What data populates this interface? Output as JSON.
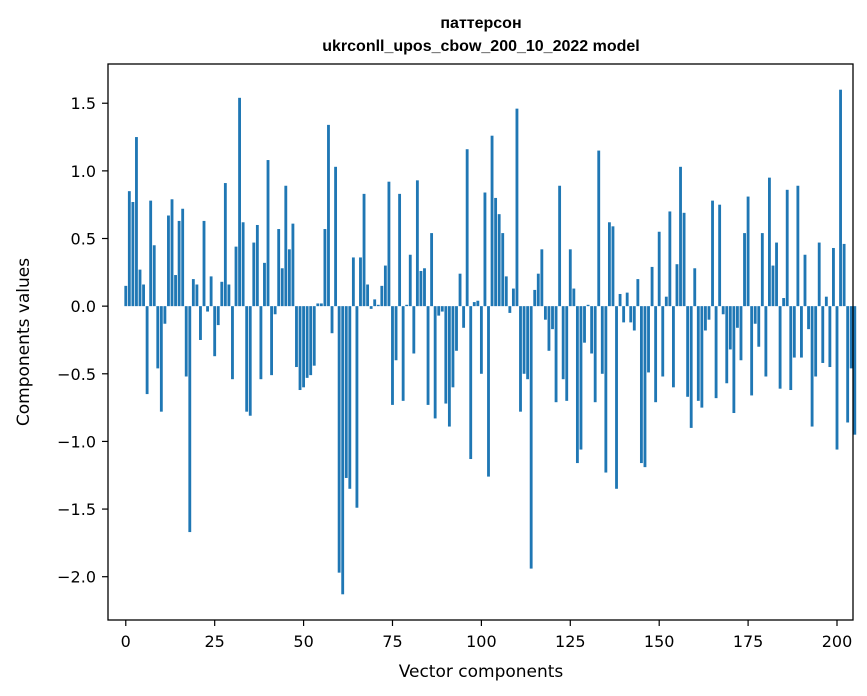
{
  "chart_data": {
    "type": "bar",
    "title_line1": "паттерсон",
    "title_line2": "ukrconll_upos_cbow_200_10_2022 model",
    "xlabel": "Vector components",
    "ylabel": "Components values",
    "xlim": [
      -5,
      204.5
    ],
    "ylim": [
      -2.32,
      1.79
    ],
    "x_ticks": [
      0,
      25,
      50,
      75,
      100,
      125,
      150,
      175,
      200
    ],
    "y_ticks": [
      1.5,
      1.0,
      0.5,
      0.0,
      -0.5,
      -1.0,
      -1.5,
      -2.0
    ],
    "y_tick_labels": [
      "1.5",
      "1.0",
      "0.5",
      "0.0",
      "−0.5",
      "−1.0",
      "−1.5",
      "−2.0"
    ],
    "bar_color": "#1f77b4",
    "grid": false,
    "values": [
      0.15,
      0.85,
      0.77,
      1.25,
      0.27,
      0.16,
      -0.65,
      0.78,
      0.45,
      -0.46,
      -0.78,
      -0.13,
      0.67,
      0.79,
      0.23,
      0.63,
      0.72,
      -0.52,
      -1.67,
      0.2,
      0.16,
      -0.25,
      0.63,
      -0.04,
      0.22,
      -0.37,
      -0.14,
      0.18,
      0.91,
      0.16,
      -0.54,
      0.44,
      1.54,
      0.62,
      -0.78,
      -0.81,
      0.47,
      0.6,
      -0.54,
      0.32,
      1.08,
      -0.51,
      -0.06,
      0.57,
      0.28,
      0.89,
      0.42,
      0.61,
      -0.45,
      -0.62,
      -0.6,
      -0.53,
      -0.51,
      -0.44,
      0.02,
      0.02,
      0.57,
      1.34,
      -0.2,
      1.03,
      -1.97,
      -2.13,
      -1.27,
      -1.35,
      0.36,
      -1.49,
      0.36,
      0.83,
      0.16,
      -0.02,
      0.05,
      0.01,
      0.15,
      0.3,
      0.92,
      -0.73,
      -0.4,
      0.83,
      -0.7,
      0.01,
      0.38,
      -0.35,
      0.93,
      0.26,
      0.28,
      -0.73,
      0.54,
      -0.83,
      -0.07,
      -0.04,
      -0.72,
      -0.89,
      -0.6,
      -0.33,
      0.24,
      -0.16,
      1.16,
      -1.13,
      0.03,
      0.04,
      -0.5,
      0.84,
      -1.26,
      1.26,
      0.8,
      0.68,
      0.54,
      0.22,
      -0.05,
      0.13,
      1.46,
      -0.78,
      -0.5,
      -0.54,
      -1.94,
      0.12,
      0.24,
      0.42,
      -0.1,
      -0.33,
      -0.17,
      -0.71,
      0.89,
      -0.54,
      -0.7,
      0.42,
      0.13,
      -1.16,
      -1.06,
      -0.27,
      0.01,
      -0.35,
      -0.71,
      1.15,
      -0.5,
      -1.23,
      0.62,
      0.59,
      -1.35,
      0.09,
      -0.12,
      0.1,
      -0.12,
      -0.18,
      0.2,
      -1.16,
      -1.19,
      -0.49,
      0.29,
      -0.71,
      0.55,
      -0.52,
      0.07,
      0.7,
      -0.6,
      0.31,
      1.03,
      0.69,
      -0.67,
      -0.9,
      0.28,
      -0.7,
      -0.75,
      -0.18,
      -0.1,
      0.78,
      -0.68,
      0.75,
      -0.06,
      -0.57,
      -0.32,
      -0.79,
      -0.16,
      -0.4,
      0.54,
      0.81,
      -0.66,
      -0.13,
      -0.3,
      0.54,
      -0.52,
      0.95,
      0.3,
      0.47,
      -0.61,
      0.06,
      0.86,
      -0.62,
      -0.38,
      0.89,
      -0.38,
      0.38,
      -0.17,
      -0.89,
      -0.52,
      0.47,
      -0.42,
      0.07,
      -0.45,
      0.43,
      -1.06,
      1.6,
      0.46,
      -0.86,
      -0.46,
      -0.95
    ]
  }
}
